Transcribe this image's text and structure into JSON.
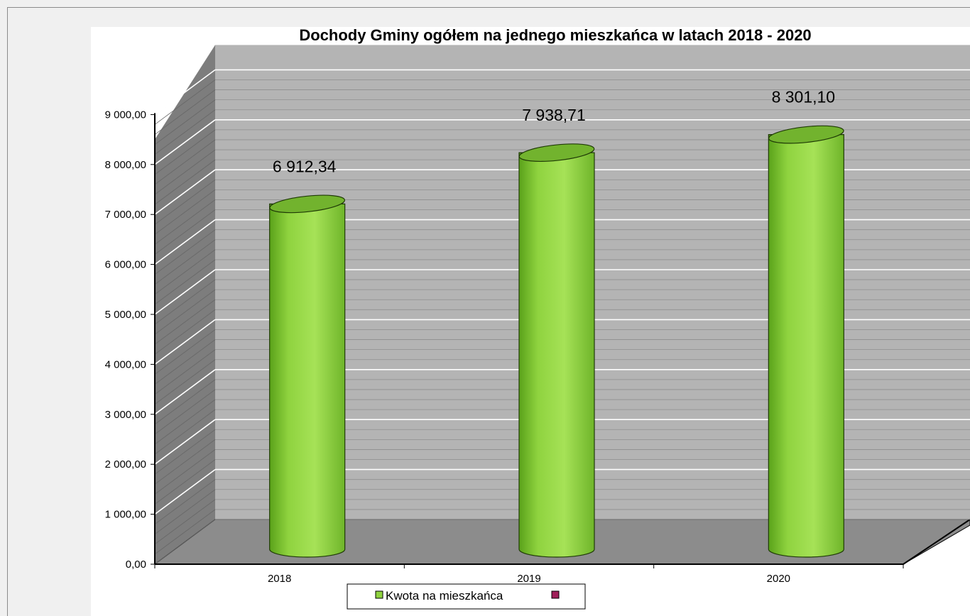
{
  "chart_data": {
    "type": "bar",
    "style": "3d-cylinder",
    "title": "Dochody Gminy ogółem na jednego mieszkańca w latach 2018 - 2020",
    "categories": [
      "2018",
      "2019",
      "2020"
    ],
    "series": [
      {
        "name": "Kwota na mieszkańca",
        "values": [
          6912.34,
          7938.71,
          8301.1
        ],
        "data_labels": [
          "6 912,34",
          "7 938,71",
          "8 301,10"
        ],
        "color": "#8fd33f"
      }
    ],
    "extra_legend_marker_color": "#a0205a",
    "yticks": [
      "0,00",
      "1 000,00",
      "2 000,00",
      "3 000,00",
      "4 000,00",
      "5 000,00",
      "6 000,00",
      "7 000,00",
      "8 000,00",
      "9 000,00"
    ],
    "ylim": [
      0,
      9000
    ],
    "grid": true,
    "legend": "bottom",
    "colors": {
      "wall": "#b4b4b4",
      "wall_side": "#7d7d7d",
      "floor": "#8c8c8c",
      "gridline": "#ffffff"
    }
  }
}
